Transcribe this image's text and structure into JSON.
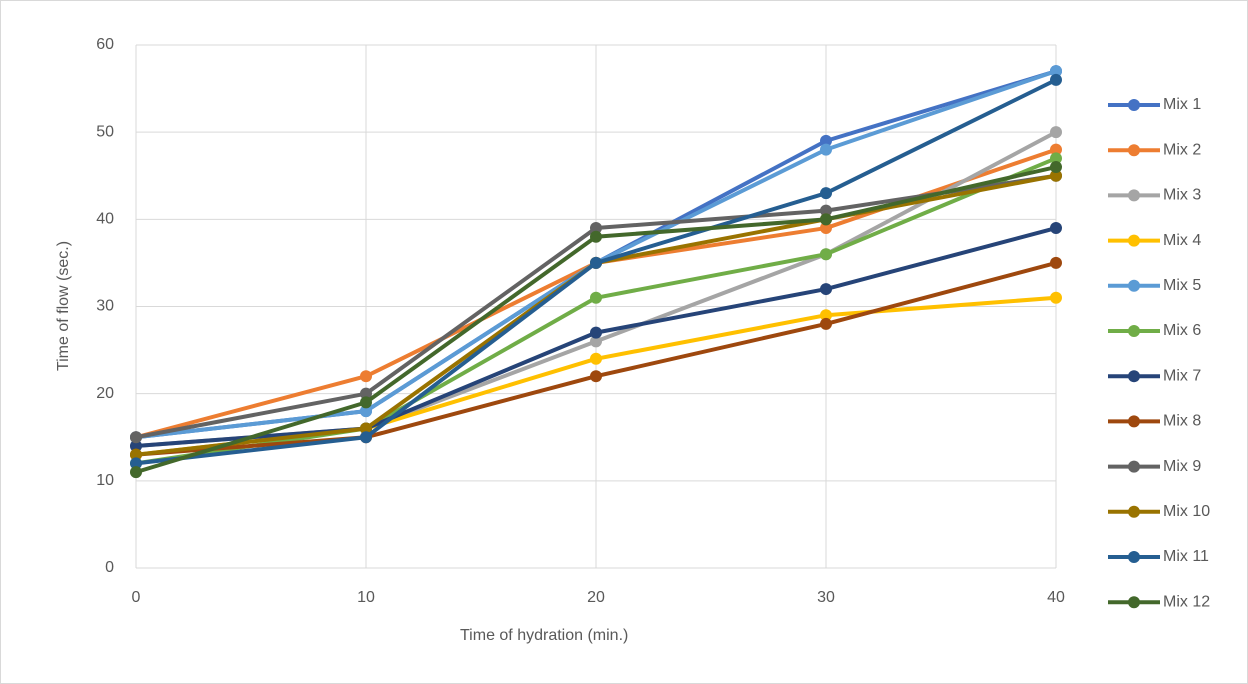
{
  "chart_data": {
    "type": "line",
    "x_label": "Time of hydration (min.)",
    "y_label": "Time of flow (sec.)",
    "x": [
      0,
      10,
      20,
      30,
      40
    ],
    "xlim": [
      0,
      40
    ],
    "xticks": [
      0,
      10,
      20,
      30,
      40
    ],
    "ylim": [
      0,
      60
    ],
    "yticks": [
      0,
      10,
      20,
      30,
      40,
      50,
      60
    ],
    "grid": true,
    "legend": "right",
    "series": [
      {
        "name": "Mix 1",
        "color": "#4472c4",
        "values": [
          15,
          18,
          35,
          49,
          57
        ]
      },
      {
        "name": "Mix 2",
        "color": "#ed7d31",
        "values": [
          15,
          22,
          35,
          39,
          48
        ]
      },
      {
        "name": "Mix 3",
        "color": "#a5a5a5",
        "values": [
          14,
          16,
          26,
          36,
          50
        ]
      },
      {
        "name": "Mix 4",
        "color": "#ffc000",
        "values": [
          13,
          16,
          24,
          29,
          31
        ]
      },
      {
        "name": "Mix 5",
        "color": "#5b9bd5",
        "values": [
          15,
          18,
          35,
          48,
          57
        ]
      },
      {
        "name": "Mix 6",
        "color": "#70ad47",
        "values": [
          12,
          16,
          31,
          36,
          47
        ]
      },
      {
        "name": "Mix 7",
        "color": "#264478",
        "values": [
          14,
          16,
          27,
          32,
          39
        ]
      },
      {
        "name": "Mix 8",
        "color": "#9e480e",
        "values": [
          13,
          15,
          22,
          28,
          35
        ]
      },
      {
        "name": "Mix 9",
        "color": "#636363",
        "values": [
          15,
          20,
          39,
          41,
          45
        ]
      },
      {
        "name": "Mix 10",
        "color": "#997300",
        "values": [
          13,
          16,
          35,
          40,
          45
        ]
      },
      {
        "name": "Mix 11",
        "color": "#255e91",
        "values": [
          12,
          15,
          35,
          43,
          56
        ]
      },
      {
        "name": "Mix 12",
        "color": "#43682b",
        "values": [
          11,
          19,
          38,
          40,
          46
        ]
      }
    ]
  }
}
